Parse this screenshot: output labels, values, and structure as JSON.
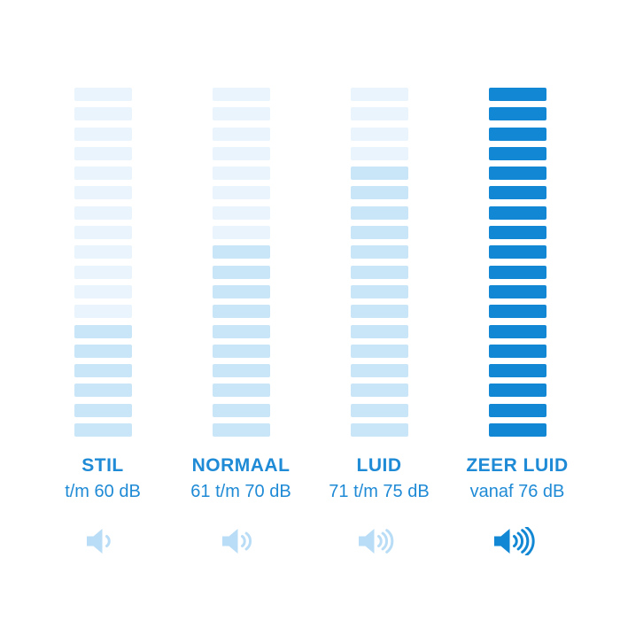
{
  "colors": {
    "faint_bar": "#e9f4fd",
    "medium_bar": "#c9e5f8",
    "solid_bar": "#1287d4",
    "label_text": "#1f8ad5",
    "icon_light": "#b9ddf6",
    "icon_solid": "#1287d4",
    "background": "#ffffff"
  },
  "chart_data": {
    "type": "bar",
    "title": "",
    "unit": "dB",
    "segments_per_column": 18,
    "layout": "four vertical stacks of horizontal segments, filled bottom-up; label, dB range and speaker icon under each stack",
    "categories": [
      "STIL",
      "NORMAAL",
      "LUID",
      "ZEER LUID"
    ],
    "columns": [
      {
        "label": "STIL",
        "range_label": "t/m 60 dB",
        "faint_segments": 12,
        "filled_segments": 6,
        "solid_segments": 0,
        "sound_wave_arcs": 1,
        "icon": "speaker-icon",
        "icon_style": "light"
      },
      {
        "label": "NORMAAL",
        "range_label": "61 t/m 70 dB",
        "faint_segments": 8,
        "filled_segments": 10,
        "solid_segments": 0,
        "sound_wave_arcs": 2,
        "icon": "speaker-icon",
        "icon_style": "light"
      },
      {
        "label": "LUID",
        "range_label": "71 t/m 75 dB",
        "faint_segments": 4,
        "filled_segments": 14,
        "solid_segments": 0,
        "sound_wave_arcs": 3,
        "icon": "speaker-icon",
        "icon_style": "light"
      },
      {
        "label": "ZEER LUID",
        "range_label": "vanaf 76 dB",
        "faint_segments": 0,
        "filled_segments": 0,
        "solid_segments": 18,
        "sound_wave_arcs": 4,
        "icon": "speaker-icon",
        "icon_style": "solid"
      }
    ]
  }
}
